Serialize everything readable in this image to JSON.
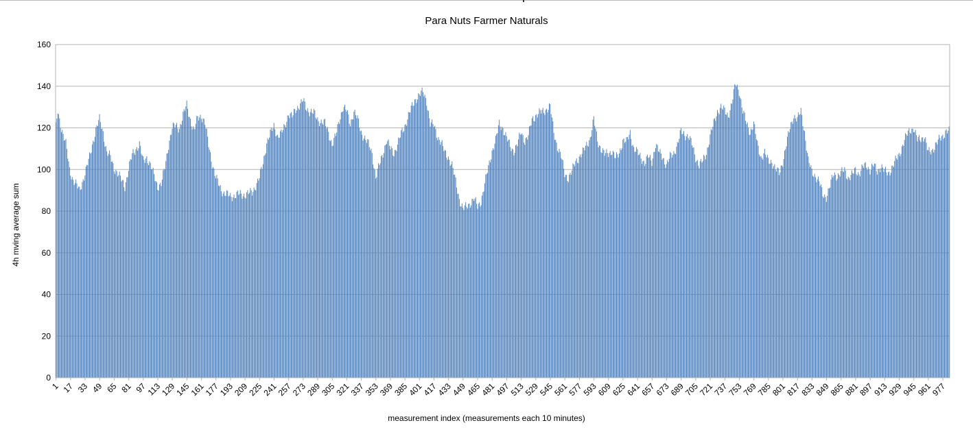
{
  "chart_data": {
    "type": "bar",
    "title": "Para Nuts Farmer Naturals",
    "xlabel": "measurement index (measurements each 10 minutes)",
    "ylabel": "4h mving average sum",
    "ylim": [
      0,
      160
    ],
    "yticks": [
      0,
      20,
      40,
      60,
      80,
      100,
      120,
      140,
      160
    ],
    "x_start": 1,
    "x_end": 984,
    "x_tick_step": 16,
    "grid": true,
    "legend": "none",
    "bar_color": "#4f81bd",
    "envelope": [
      [
        1,
        120
      ],
      [
        3,
        128
      ],
      [
        7,
        120
      ],
      [
        12,
        112
      ],
      [
        16,
        100
      ],
      [
        20,
        95
      ],
      [
        27,
        90
      ],
      [
        33,
        98
      ],
      [
        37,
        104
      ],
      [
        41,
        112
      ],
      [
        45,
        119
      ],
      [
        49,
        124
      ],
      [
        53,
        118
      ],
      [
        57,
        108
      ],
      [
        61,
        106
      ],
      [
        65,
        101
      ],
      [
        73,
        95
      ],
      [
        77,
        92
      ],
      [
        81,
        100
      ],
      [
        85,
        107
      ],
      [
        89,
        110
      ],
      [
        93,
        112
      ],
      [
        97,
        104
      ],
      [
        101,
        106
      ],
      [
        105,
        102
      ],
      [
        109,
        97
      ],
      [
        113,
        92
      ],
      [
        117,
        93
      ],
      [
        121,
        101
      ],
      [
        125,
        112
      ],
      [
        129,
        120
      ],
      [
        133,
        121
      ],
      [
        137,
        120
      ],
      [
        141,
        126
      ],
      [
        145,
        131
      ],
      [
        149,
        124
      ],
      [
        153,
        118
      ],
      [
        157,
        125
      ],
      [
        161,
        126
      ],
      [
        165,
        122
      ],
      [
        169,
        112
      ],
      [
        173,
        103
      ],
      [
        177,
        96
      ],
      [
        181,
        92
      ],
      [
        185,
        89
      ],
      [
        193,
        87
      ],
      [
        201,
        88
      ],
      [
        209,
        88
      ],
      [
        217,
        89
      ],
      [
        225,
        96
      ],
      [
        229,
        103
      ],
      [
        233,
        113
      ],
      [
        237,
        117
      ],
      [
        241,
        121
      ],
      [
        245,
        116
      ],
      [
        249,
        117
      ],
      [
        253,
        121
      ],
      [
        257,
        127
      ],
      [
        261,
        125
      ],
      [
        265,
        129
      ],
      [
        269,
        131
      ],
      [
        273,
        133
      ],
      [
        277,
        129
      ],
      [
        281,
        128
      ],
      [
        285,
        127
      ],
      [
        289,
        124
      ],
      [
        293,
        123
      ],
      [
        297,
        122
      ],
      [
        301,
        118
      ],
      [
        305,
        112
      ],
      [
        309,
        116
      ],
      [
        313,
        124
      ],
      [
        317,
        130
      ],
      [
        321,
        128
      ],
      [
        325,
        122
      ],
      [
        329,
        128
      ],
      [
        333,
        124
      ],
      [
        337,
        118
      ],
      [
        341,
        115
      ],
      [
        345,
        112
      ],
      [
        349,
        108
      ],
      [
        353,
        96
      ],
      [
        357,
        102
      ],
      [
        361,
        108
      ],
      [
        365,
        114
      ],
      [
        369,
        110
      ],
      [
        373,
        108
      ],
      [
        377,
        112
      ],
      [
        381,
        117
      ],
      [
        385,
        121
      ],
      [
        389,
        126
      ],
      [
        393,
        130
      ],
      [
        397,
        134
      ],
      [
        401,
        136
      ],
      [
        405,
        137
      ],
      [
        409,
        133
      ],
      [
        413,
        122
      ],
      [
        417,
        121
      ],
      [
        421,
        116
      ],
      [
        425,
        113
      ],
      [
        429,
        108
      ],
      [
        433,
        106
      ],
      [
        437,
        102
      ],
      [
        441,
        94
      ],
      [
        445,
        86
      ],
      [
        449,
        81
      ],
      [
        453,
        82
      ],
      [
        457,
        84
      ],
      [
        461,
        86
      ],
      [
        465,
        82
      ],
      [
        469,
        85
      ],
      [
        473,
        93
      ],
      [
        477,
        101
      ],
      [
        481,
        109
      ],
      [
        485,
        114
      ],
      [
        489,
        122
      ],
      [
        493,
        120
      ],
      [
        497,
        115
      ],
      [
        501,
        111
      ],
      [
        505,
        109
      ],
      [
        509,
        112
      ],
      [
        513,
        118
      ],
      [
        517,
        114
      ],
      [
        521,
        116
      ],
      [
        525,
        124
      ],
      [
        529,
        126
      ],
      [
        533,
        127
      ],
      [
        537,
        128
      ],
      [
        541,
        129
      ],
      [
        545,
        130
      ],
      [
        549,
        118
      ],
      [
        553,
        111
      ],
      [
        557,
        106
      ],
      [
        561,
        98
      ],
      [
        565,
        96
      ],
      [
        569,
        99
      ],
      [
        573,
        104
      ],
      [
        577,
        106
      ],
      [
        581,
        108
      ],
      [
        585,
        112
      ],
      [
        589,
        115
      ],
      [
        593,
        124
      ],
      [
        597,
        114
      ],
      [
        601,
        110
      ],
      [
        605,
        107
      ],
      [
        609,
        108
      ],
      [
        613,
        109
      ],
      [
        617,
        105
      ],
      [
        621,
        108
      ],
      [
        625,
        114
      ],
      [
        629,
        113
      ],
      [
        633,
        118
      ],
      [
        637,
        110
      ],
      [
        641,
        108
      ],
      [
        645,
        106
      ],
      [
        649,
        103
      ],
      [
        653,
        106
      ],
      [
        657,
        104
      ],
      [
        661,
        112
      ],
      [
        665,
        108
      ],
      [
        669,
        106
      ],
      [
        673,
        102
      ],
      [
        677,
        106
      ],
      [
        681,
        108
      ],
      [
        685,
        112
      ],
      [
        689,
        118
      ],
      [
        693,
        117
      ],
      [
        697,
        116
      ],
      [
        701,
        112
      ],
      [
        705,
        106
      ],
      [
        709,
        102
      ],
      [
        713,
        104
      ],
      [
        717,
        108
      ],
      [
        721,
        116
      ],
      [
        725,
        122
      ],
      [
        729,
        128
      ],
      [
        733,
        130
      ],
      [
        737,
        128
      ],
      [
        741,
        126
      ],
      [
        745,
        132
      ],
      [
        749,
        141
      ],
      [
        753,
        138
      ],
      [
        757,
        128
      ],
      [
        761,
        122
      ],
      [
        765,
        118
      ],
      [
        769,
        122
      ],
      [
        773,
        112
      ],
      [
        777,
        106
      ],
      [
        781,
        108
      ],
      [
        785,
        104
      ],
      [
        789,
        104
      ],
      [
        793,
        100
      ],
      [
        797,
        98
      ],
      [
        801,
        104
      ],
      [
        805,
        112
      ],
      [
        809,
        120
      ],
      [
        813,
        126
      ],
      [
        817,
        124
      ],
      [
        821,
        128
      ],
      [
        825,
        118
      ],
      [
        829,
        104
      ],
      [
        833,
        99
      ],
      [
        837,
        97
      ],
      [
        841,
        94
      ],
      [
        845,
        88
      ],
      [
        849,
        87
      ],
      [
        853,
        92
      ],
      [
        857,
        98
      ],
      [
        861,
        97
      ],
      [
        865,
        98
      ],
      [
        869,
        100
      ],
      [
        873,
        96
      ],
      [
        877,
        97
      ],
      [
        881,
        100
      ],
      [
        885,
        98
      ],
      [
        889,
        101
      ],
      [
        893,
        102
      ],
      [
        897,
        100
      ],
      [
        901,
        102
      ],
      [
        905,
        99
      ],
      [
        909,
        102
      ],
      [
        913,
        99
      ],
      [
        917,
        98
      ],
      [
        921,
        101
      ],
      [
        925,
        104
      ],
      [
        929,
        107
      ],
      [
        933,
        112
      ],
      [
        937,
        116
      ],
      [
        941,
        119
      ],
      [
        945,
        120
      ],
      [
        949,
        114
      ],
      [
        953,
        115
      ],
      [
        957,
        116
      ],
      [
        961,
        108
      ],
      [
        965,
        109
      ],
      [
        969,
        112
      ],
      [
        973,
        114
      ],
      [
        977,
        116
      ],
      [
        981,
        119
      ],
      [
        984,
        118
      ]
    ]
  }
}
